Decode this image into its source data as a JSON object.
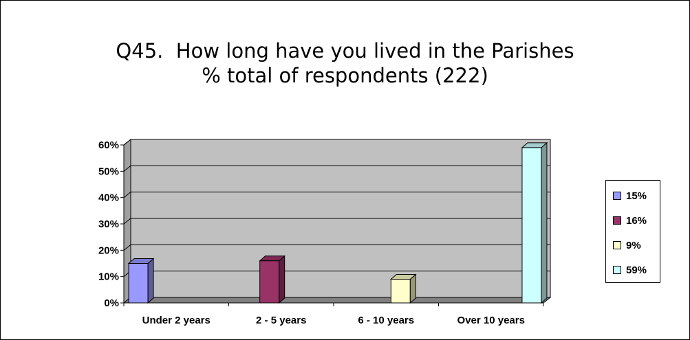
{
  "chart_data": {
    "type": "bar",
    "title_lines": [
      "Q45.  How long have you lived in the Parishes",
      "% total of respondents (222)"
    ],
    "categories": [
      "Under 2 years",
      "2 - 5 years",
      "6 - 10 years",
      "Over 10 years"
    ],
    "series": [
      {
        "name": "15%",
        "values": [
          15,
          0,
          0,
          0
        ],
        "color": "#9999FF"
      },
      {
        "name": "16%",
        "values": [
          0,
          16,
          0,
          0
        ],
        "color": "#993366"
      },
      {
        "name": "9%",
        "values": [
          0,
          0,
          9,
          0
        ],
        "color": "#FFFFCC"
      },
      {
        "name": "59%",
        "values": [
          0,
          0,
          0,
          59
        ],
        "color": "#CCFFFF"
      }
    ],
    "ylim": [
      0,
      60
    ],
    "yticks": [
      "0%",
      "10%",
      "20%",
      "30%",
      "40%",
      "50%",
      "60%"
    ],
    "xlabel": "",
    "ylabel": "",
    "grid": true,
    "plot_background": "#C0C0C0",
    "legend_position": "right"
  }
}
